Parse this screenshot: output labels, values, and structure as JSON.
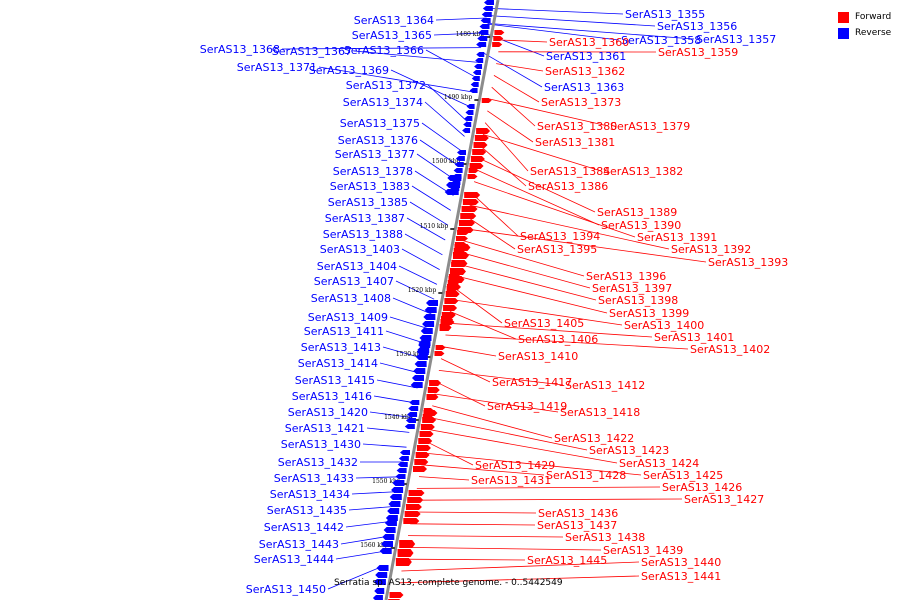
{
  "legend": {
    "forward_label": "Forward",
    "reverse_label": "Reverse",
    "forward_color": "#ff0000",
    "reverse_color": "#0000ff"
  },
  "caption": "Serratia sp. AS13, complete genome. - 0..5442549",
  "ticks": [
    "1480 kbp",
    "1490 kbp",
    "1500 kbp",
    "1510 kbp",
    "1520 kbp",
    "1530 kbp",
    "1540 kbp",
    "1550 kbp",
    "1560 kbp"
  ],
  "reverse_genes": [
    "SerAS13_1364",
    "SerAS13_1365",
    "SerAS13_1368",
    "SerAS13_1367",
    "SerAS13_1366",
    "SerAS13_1371",
    "SerAS13_1369",
    "SerAS13_1372",
    "SerAS13_1374",
    "SerAS13_1375",
    "SerAS13_1376",
    "SerAS13_1377",
    "SerAS13_1378",
    "SerAS13_1383",
    "SerAS13_1385",
    "SerAS13_1387",
    "SerAS13_1388",
    "SerAS13_1403",
    "SerAS13_1404",
    "SerAS13_1407",
    "SerAS13_1408",
    "SerAS13_1409",
    "SerAS13_1411",
    "SerAS13_1413",
    "SerAS13_1414",
    "SerAS13_1415",
    "SerAS13_1416",
    "SerAS13_1420",
    "SerAS13_1421",
    "SerAS13_1430",
    "SerAS13_1432",
    "SerAS13_1433",
    "SerAS13_1434",
    "SerAS13_1435",
    "SerAS13_1442",
    "SerAS13_1443",
    "SerAS13_1444",
    "SerAS13_1450",
    "SerAS13_1355",
    "SerAS13_1356",
    "SerAS13_1358",
    "SerAS13_1357",
    "SerAS13_1361",
    "SerAS13_1363"
  ],
  "forward_genes": [
    "SerAS13_1360",
    "SerAS13_1359",
    "SerAS13_1362",
    "SerAS13_1373",
    "SerAS13_1380",
    "SerAS13_1379",
    "SerAS13_1381",
    "SerAS13_1384",
    "SerAS13_1382",
    "SerAS13_1386",
    "SerAS13_1389",
    "SerAS13_1390",
    "SerAS13_1391",
    "SerAS13_1394",
    "SerAS13_1392",
    "SerAS13_1395",
    "SerAS13_1393",
    "SerAS13_1396",
    "SerAS13_1397",
    "SerAS13_1398",
    "SerAS13_1399",
    "SerAS13_1405",
    "SerAS13_1400",
    "SerAS13_1406",
    "SerAS13_1401",
    "SerAS13_1402",
    "SerAS13_1410",
    "SerAS13_1417",
    "SerAS13_1412",
    "SerAS13_1419",
    "SerAS13_1418",
    "SerAS13_1422",
    "SerAS13_1423",
    "SerAS13_1424",
    "SerAS13_1429",
    "SerAS13_1425",
    "SerAS13_1428",
    "SerAS13_1431",
    "SerAS13_1426",
    "SerAS13_1427",
    "SerAS13_1436",
    "SerAS13_1437",
    "SerAS13_1438",
    "SerAS13_1439",
    "SerAS13_1445",
    "SerAS13_1440",
    "SerAS13_1441"
  ]
}
